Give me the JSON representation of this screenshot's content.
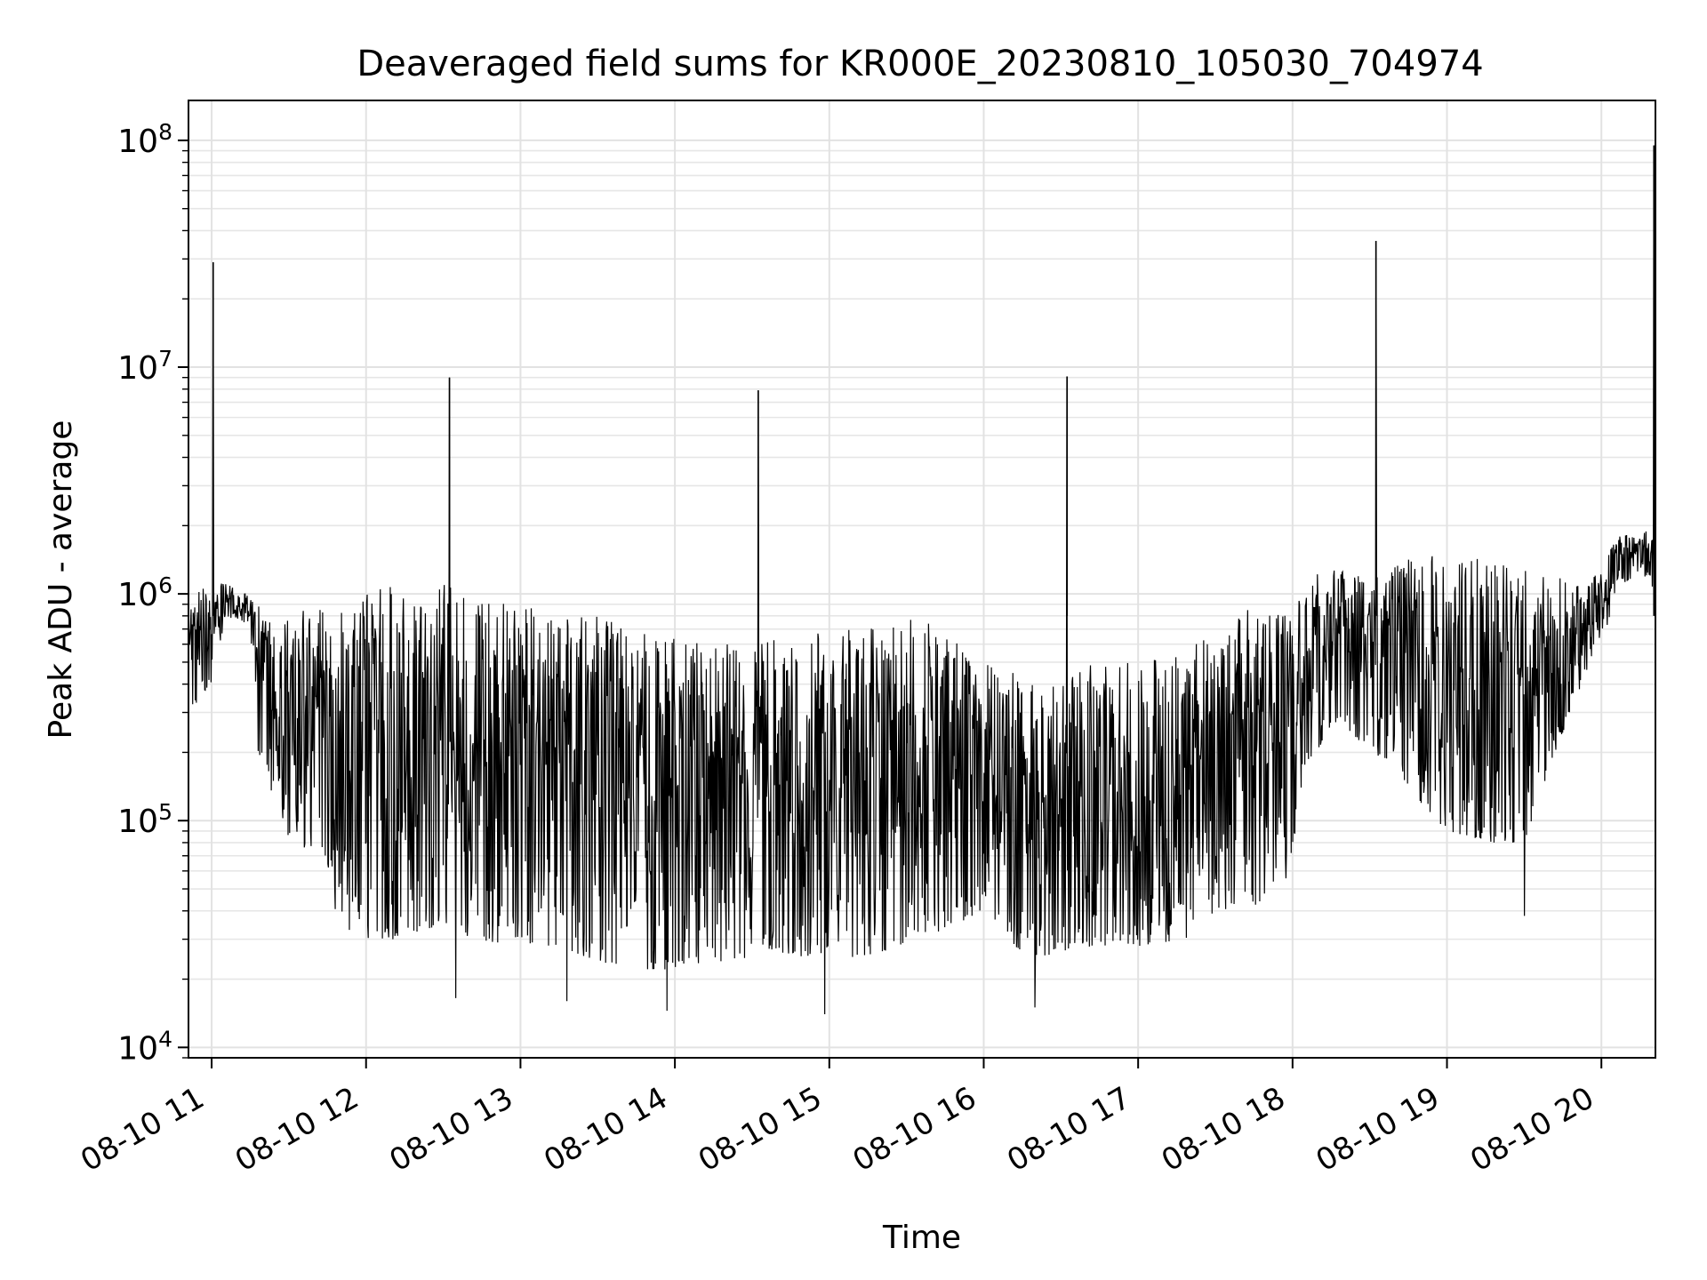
{
  "chart_data": {
    "type": "line",
    "title": "Deaveraged field sums for KR000E_20230810_105030_704974",
    "xlabel": "Time",
    "ylabel": "Peak ADU - average",
    "yscale": "log",
    "ylim": [
      9000,
      150000000
    ],
    "xlim_hours": [
      10.85,
      20.35
    ],
    "grid": true,
    "line_color": "#000000",
    "x_ticks": [
      {
        "hour": 11,
        "label": "08-10 11"
      },
      {
        "hour": 12,
        "label": "08-10 12"
      },
      {
        "hour": 13,
        "label": "08-10 13"
      },
      {
        "hour": 14,
        "label": "08-10 14"
      },
      {
        "hour": 15,
        "label": "08-10 15"
      },
      {
        "hour": 16,
        "label": "08-10 16"
      },
      {
        "hour": 17,
        "label": "08-10 17"
      },
      {
        "hour": 18,
        "label": "08-10 18"
      },
      {
        "hour": 19,
        "label": "08-10 19"
      },
      {
        "hour": 20,
        "label": "08-10 20"
      }
    ],
    "y_ticks": [
      {
        "value": 10000,
        "base": "10",
        "exp": "4"
      },
      {
        "value": 100000,
        "base": "10",
        "exp": "5"
      },
      {
        "value": 1000000,
        "base": "10",
        "exp": "6"
      },
      {
        "value": 10000000,
        "base": "10",
        "exp": "7"
      },
      {
        "value": 100000000,
        "base": "10",
        "exp": "8"
      }
    ],
    "series_envelope": {
      "hours": [
        10.85,
        11.0,
        11.1,
        11.25,
        11.3,
        11.45,
        11.5,
        11.7,
        11.8,
        11.85,
        12.0,
        12.2,
        12.5,
        12.7,
        13.0,
        13.3,
        13.5,
        13.7,
        14.0,
        14.3,
        14.5,
        14.7,
        15.0,
        15.3,
        15.5,
        15.7,
        16.0,
        16.2,
        16.3,
        16.5,
        16.7,
        17.0,
        17.3,
        17.5,
        17.7,
        17.95,
        18.1,
        18.3,
        18.5,
        18.7,
        19.0,
        19.3,
        19.5,
        19.7,
        19.9,
        20.0,
        20.1,
        20.3,
        20.35
      ],
      "lower": [
        300000,
        400000,
        800000,
        700000,
        200000,
        100000,
        80000,
        70000,
        40000,
        28000,
        30000,
        30000,
        35000,
        30000,
        28000,
        27000,
        24000,
        22000,
        22000,
        24000,
        25000,
        26000,
        24000,
        26000,
        28000,
        32000,
        40000,
        28000,
        25000,
        26000,
        28000,
        28000,
        30000,
        35000,
        40000,
        50000,
        180000,
        280000,
        200000,
        150000,
        90000,
        80000,
        80000,
        200000,
        450000,
        550000,
        1100000,
        1200000,
        1000000
      ],
      "upper": [
        900000,
        1200000,
        1100000,
        1000000,
        900000,
        700000,
        800000,
        900000,
        600000,
        900000,
        1100000,
        1100000,
        1100000,
        1000000,
        900000,
        800000,
        800000,
        700000,
        650000,
        600000,
        600000,
        650000,
        700000,
        800000,
        850000,
        700000,
        550000,
        450000,
        400000,
        400000,
        500000,
        500000,
        550000,
        700000,
        850000,
        900000,
        1200000,
        1300000,
        1300000,
        1400000,
        1500000,
        1400000,
        1300000,
        1200000,
        1100000,
        1300000,
        1800000,
        1900000,
        1700000
      ]
    },
    "spikes": [
      {
        "hour": 11.01,
        "value": 29000000
      },
      {
        "hour": 12.54,
        "value": 9000000
      },
      {
        "hour": 14.54,
        "value": 7900000
      },
      {
        "hour": 16.54,
        "value": 9100000
      },
      {
        "hour": 18.54,
        "value": 36000000
      },
      {
        "hour": 20.34,
        "value": 95000000
      }
    ],
    "minimum_dips": [
      {
        "hour": 12.58,
        "value": 16500
      },
      {
        "hour": 13.3,
        "value": 16000
      },
      {
        "hour": 13.95,
        "value": 14500
      },
      {
        "hour": 14.97,
        "value": 14000
      },
      {
        "hour": 16.33,
        "value": 15000
      },
      {
        "hour": 19.5,
        "value": 38000
      }
    ]
  }
}
